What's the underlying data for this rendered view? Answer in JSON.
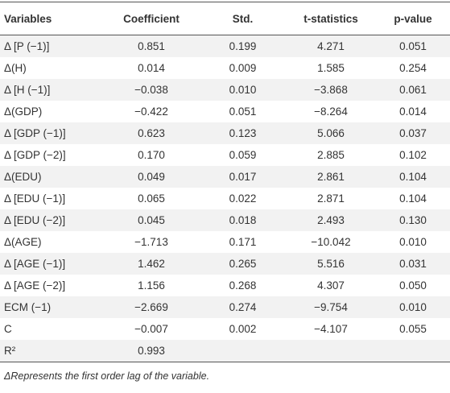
{
  "table": {
    "header": [
      "Variables",
      "Coefficient",
      "Std.",
      "t-statistics",
      "p-value"
    ],
    "rows": [
      [
        "Δ [P (−1)]",
        "0.851",
        "0.199",
        "4.271",
        "0.051"
      ],
      [
        "Δ(H)",
        "0.014",
        "0.009",
        "1.585",
        "0.254"
      ],
      [
        "Δ [H (−1)]",
        "−0.038",
        "0.010",
        "−3.868",
        "0.061"
      ],
      [
        "Δ(GDP)",
        "−0.422",
        "0.051",
        "−8.264",
        "0.014"
      ],
      [
        "Δ [GDP (−1)]",
        "0.623",
        "0.123",
        "5.066",
        "0.037"
      ],
      [
        "Δ [GDP (−2)]",
        "0.170",
        "0.059",
        "2.885",
        "0.102"
      ],
      [
        "Δ(EDU)",
        "0.049",
        "0.017",
        "2.861",
        "0.104"
      ],
      [
        "Δ [EDU (−1)]",
        "0.065",
        "0.022",
        "2.871",
        "0.104"
      ],
      [
        "Δ [EDU (−2)]",
        "0.045",
        "0.018",
        "2.493",
        "0.130"
      ],
      [
        "Δ(AGE)",
        "−1.713",
        "0.171",
        "−10.042",
        "0.010"
      ],
      [
        "Δ [AGE (−1)]",
        "1.462",
        "0.265",
        "5.516",
        "0.031"
      ],
      [
        "Δ [AGE (−2)]",
        "1.156",
        "0.268",
        "4.307",
        "0.050"
      ],
      [
        "ECM (−1)",
        "−2.669",
        "0.274",
        "−9.754",
        "0.010"
      ],
      [
        "C",
        "−0.007",
        "0.002",
        "−4.107",
        "0.055"
      ],
      [
        "R²",
        "0.993",
        null,
        null,
        null
      ]
    ],
    "footnote": "ΔRepresents the first order lag of the variable."
  }
}
